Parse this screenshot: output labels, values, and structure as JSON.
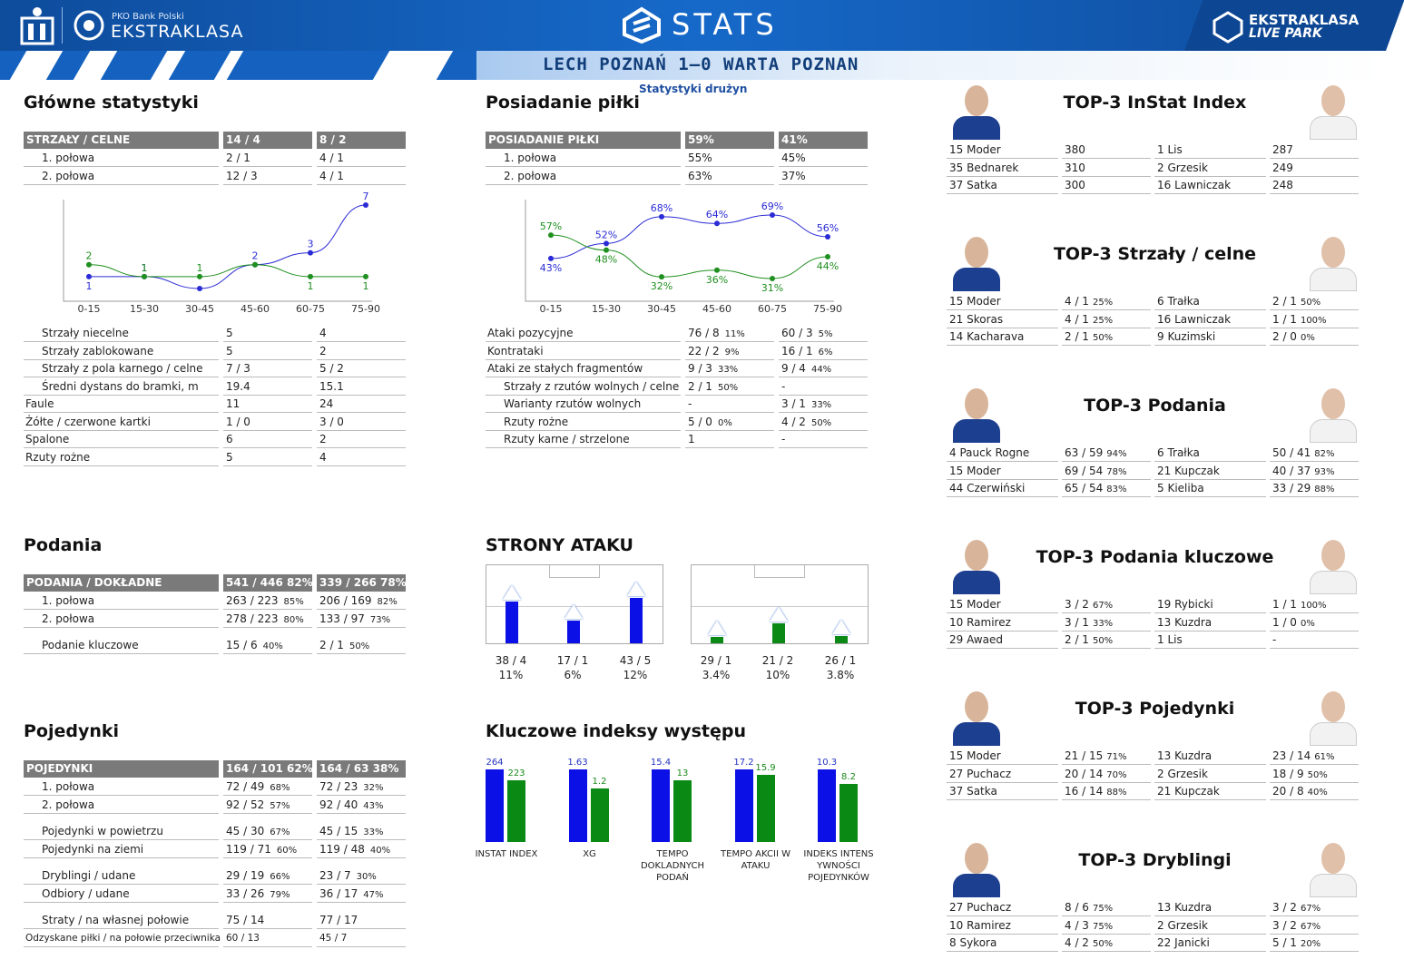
{
  "header": {
    "pko": "PKO Bank Polski",
    "league": "EKSTRAKLASA",
    "stats": "STATS",
    "livepark1": "EKSTRAKLASA",
    "livepark2": "LIVE PARK",
    "match": "LECH POZNAŃ 1–0 WARTA POZNAN",
    "subtitle": "Statystyki drużyn"
  },
  "main": {
    "title": "Główne statystyki",
    "header": [
      "STRZAŁY / CELNE",
      "14 / 4",
      "8 / 2"
    ],
    "halves": [
      [
        "1. połowa",
        "2 / 1",
        "4 / 1"
      ],
      [
        "2. połowa",
        "12 / 3",
        "4 / 1"
      ]
    ],
    "rows": [
      [
        "Strzały niecelne",
        "5",
        "4",
        1
      ],
      [
        "Strzały zablokowane",
        "5",
        "2",
        1
      ],
      [
        "Strzały z pola karnego / celne",
        "7 / 3",
        "5 / 2",
        1
      ],
      [
        "Średni dystans do bramki, m",
        "19.4",
        "15.1",
        1
      ],
      [
        "Faule",
        "11",
        "24",
        0
      ],
      [
        "Żółte / czerwone kartki",
        "1 / 0",
        "3 / 0",
        0
      ],
      [
        "Spalone",
        "6",
        "2",
        0
      ],
      [
        "Rzuty rożne",
        "5",
        "4",
        0
      ]
    ]
  },
  "possession": {
    "title": "Posiadanie piłki",
    "header": [
      "POSIADANIE PIŁKI",
      "59%",
      "41%"
    ],
    "halves": [
      [
        "1. połowa",
        "55%",
        "45%"
      ],
      [
        "2. połowa",
        "63%",
        "37%"
      ]
    ],
    "rows": [
      [
        "Ataki pozycyjne",
        "76 / 8",
        "11%",
        "60 / 3",
        "5%",
        0
      ],
      [
        "Kontrataki",
        "22 / 2",
        "9%",
        "16 / 1",
        "6%",
        0
      ],
      [
        "Ataki ze stałych fragmentów",
        "9 / 3",
        "33%",
        "9 / 4",
        "44%",
        0
      ],
      [
        "Strzały z rzutów wolnych / celne",
        "2 / 1",
        "50%",
        "-",
        "",
        1
      ],
      [
        "Warianty rzutów wolnych",
        "-",
        "",
        "3 / 1",
        "33%",
        1
      ],
      [
        "Rzuty rożne",
        "5 / 0",
        "0%",
        "4 / 2",
        "50%",
        1
      ],
      [
        "Rzuty karne / strzelone",
        "1",
        "",
        "-",
        "",
        1
      ]
    ]
  },
  "passes": {
    "title": "Podania",
    "header": [
      "PODANIA / DOKŁADNE",
      "541 / 446 82%",
      "339 / 266 78%"
    ],
    "rows": [
      [
        "1. połowa",
        "263 / 223",
        "85%",
        "206 / 169",
        "82%"
      ],
      [
        "2. połowa",
        "278 / 223",
        "80%",
        "133 / 97",
        "73%"
      ],
      [
        "Podanie kluczowe",
        "15 / 6",
        "40%",
        "2 / 1",
        "50%"
      ]
    ]
  },
  "duels": {
    "title": "Pojedynki",
    "header": [
      "POJEDYNKI",
      "164 / 101 62%",
      "164 / 63 38%"
    ],
    "rows": [
      [
        "1. połowa",
        "72 / 49",
        "68%",
        "72 / 23",
        "32%"
      ],
      [
        "2. połowa",
        "92 / 52",
        "57%",
        "92 / 40",
        "43%"
      ],
      [
        "Pojedynki w powietrzu",
        "45 / 30",
        "67%",
        "45 / 15",
        "33%"
      ],
      [
        "Pojedynki na ziemi",
        "119 / 71",
        "60%",
        "119 / 48",
        "40%"
      ],
      [
        "Dryblingi / udane",
        "29 / 19",
        "66%",
        "23 / 7",
        "30%"
      ],
      [
        "Odbiory / udane",
        "33 / 26",
        "79%",
        "36 / 17",
        "47%"
      ],
      [
        "Straty / na własnej połowie",
        "75 / 14",
        "",
        "77 / 17",
        ""
      ],
      [
        "Odzyskane piłki / na połowie przeciwnika",
        "60 / 13",
        "",
        "45 / 7",
        ""
      ]
    ]
  },
  "attack_sides": {
    "title": "STRONY ATAKU",
    "home": [
      [
        "38 / 4",
        "11%"
      ],
      [
        "17 / 1",
        "6%"
      ],
      [
        "43 / 5",
        "12%"
      ]
    ],
    "away": [
      [
        "29 / 1",
        "3.4%"
      ],
      [
        "21 / 2",
        "10%"
      ],
      [
        "26 / 1",
        "3.8%"
      ]
    ],
    "home_color": "#0a10e6",
    "away_color": "#0a8a14"
  },
  "key_indexes": {
    "title": "Kluczowe indeksy występu",
    "items": [
      {
        "label": "INSTAT INDEX",
        "home": "264",
        "away": "223",
        "h": 1,
        "a": 0.845
      },
      {
        "label": "XG",
        "home": "1.63",
        "away": "1.2",
        "h": 1,
        "a": 0.736
      },
      {
        "label": "TEMPO DOKLADNYCH PODAŃ",
        "home": "15.4",
        "away": "13",
        "h": 1,
        "a": 0.844
      },
      {
        "label": "TEMPO AKCII W ATAKU",
        "home": "17.2",
        "away": "15.9",
        "h": 1,
        "a": 0.924
      },
      {
        "label": "INDEKS INTENS YWNOŚCI POJEDYNKÓW",
        "home": "10.3",
        "away": "8.2",
        "h": 1,
        "a": 0.796
      }
    ]
  },
  "top3": [
    {
      "title": "TOP-3 InStat Index",
      "home": [
        [
          "15 Moder",
          "380",
          ""
        ],
        [
          "35 Bednarek",
          "310",
          ""
        ],
        [
          "37 Satka",
          "300",
          ""
        ]
      ],
      "away": [
        [
          "1  Lis",
          "287",
          ""
        ],
        [
          "2  Grzesik",
          "249",
          ""
        ],
        [
          "16 Lawniczak",
          "248",
          ""
        ]
      ]
    },
    {
      "title": "TOP-3 Strzały / celne",
      "home": [
        [
          "15 Moder",
          "4 / 1",
          "25%"
        ],
        [
          "21 Skoras",
          "4 / 1",
          "25%"
        ],
        [
          "14 Kacharava",
          "2 / 1",
          "50%"
        ]
      ],
      "away": [
        [
          "6  Trałka",
          "2 / 1",
          "50%"
        ],
        [
          "16 Lawniczak",
          "1 / 1",
          "100%"
        ],
        [
          "9  Kuzimski",
          "2 / 0",
          "0%"
        ]
      ]
    },
    {
      "title": "TOP-3 Podania",
      "home": [
        [
          "4  Pauck Rogne",
          "63 / 59",
          "94%"
        ],
        [
          "15 Moder",
          "69 / 54",
          "78%"
        ],
        [
          "44 Czerwiński",
          "65 / 54",
          "83%"
        ]
      ],
      "away": [
        [
          "6  Trałka",
          "50 / 41",
          "82%"
        ],
        [
          "21 Kupczak",
          "40 / 37",
          "93%"
        ],
        [
          "5  Kieliba",
          "33 / 29",
          "88%"
        ]
      ]
    },
    {
      "title": "TOP-3 Podania kluczowe",
      "home": [
        [
          "15 Moder",
          "3 / 2",
          "67%"
        ],
        [
          "10 Ramirez",
          "3 / 1",
          "33%"
        ],
        [
          "29 Awaed",
          "2 / 1",
          "50%"
        ]
      ],
      "away": [
        [
          "19 Rybicki",
          "1 / 1",
          "100%"
        ],
        [
          "13 Kuzdra",
          "1 / 0",
          "0%"
        ],
        [
          "1  Lis",
          "-",
          ""
        ]
      ]
    },
    {
      "title": "TOP-3 Pojedynki",
      "home": [
        [
          "15 Moder",
          "21 / 15",
          "71%"
        ],
        [
          "27 Puchacz",
          "20 / 14",
          "70%"
        ],
        [
          "37 Satka",
          "16 / 14",
          "88%"
        ]
      ],
      "away": [
        [
          "13 Kuzdra",
          "23 / 14",
          "61%"
        ],
        [
          "2  Grzesik",
          "18 / 9",
          "50%"
        ],
        [
          "21 Kupczak",
          "20 / 8",
          "40%"
        ]
      ]
    },
    {
      "title": "TOP-3 Dryblingi",
      "home": [
        [
          "27 Puchacz",
          "8 / 6",
          "75%"
        ],
        [
          "10 Ramirez",
          "4 / 3",
          "75%"
        ],
        [
          "8  Sykora",
          "4 / 2",
          "50%"
        ]
      ],
      "away": [
        [
          "13 Kuzdra",
          "3 / 2",
          "67%"
        ],
        [
          "2  Grzesik",
          "3 / 2",
          "67%"
        ],
        [
          "22 Janicki",
          "5 / 1",
          "20%"
        ]
      ]
    }
  ],
  "chart_data": [
    {
      "type": "line",
      "title": "",
      "categories": [
        "0-15",
        "15-30",
        "30-45",
        "45-60",
        "60-75",
        "75-90"
      ],
      "series": [
        {
          "values": [
            1,
            1,
            0,
            2,
            3,
            7
          ],
          "labels": [
            "1",
            "1",
            "",
            "2",
            "3",
            "7"
          ],
          "color": "#2b2bd6"
        },
        {
          "values": [
            2,
            1,
            1,
            2,
            1,
            1
          ],
          "labels": [
            "2",
            "1",
            "1",
            "",
            "1",
            "1"
          ],
          "color": "#1f8f1f"
        }
      ],
      "ylim": [
        0,
        7
      ]
    },
    {
      "type": "line",
      "title": "",
      "categories": [
        "0-15",
        "15-30",
        "30-45",
        "45-60",
        "60-75",
        "75-90"
      ],
      "series": [
        {
          "values": [
            43,
            52,
            68,
            64,
            69,
            56
          ],
          "labels": [
            "43%",
            "52%",
            "68%",
            "64%",
            "69%",
            "56%"
          ],
          "color": "#2b2bd6"
        },
        {
          "values": [
            57,
            48,
            32,
            36,
            31,
            44
          ],
          "labels": [
            "57%",
            "48%",
            "32%",
            "36%",
            "31%",
            "44%"
          ],
          "color": "#1f8f1f"
        }
      ],
      "ylim": [
        25,
        75
      ]
    }
  ]
}
